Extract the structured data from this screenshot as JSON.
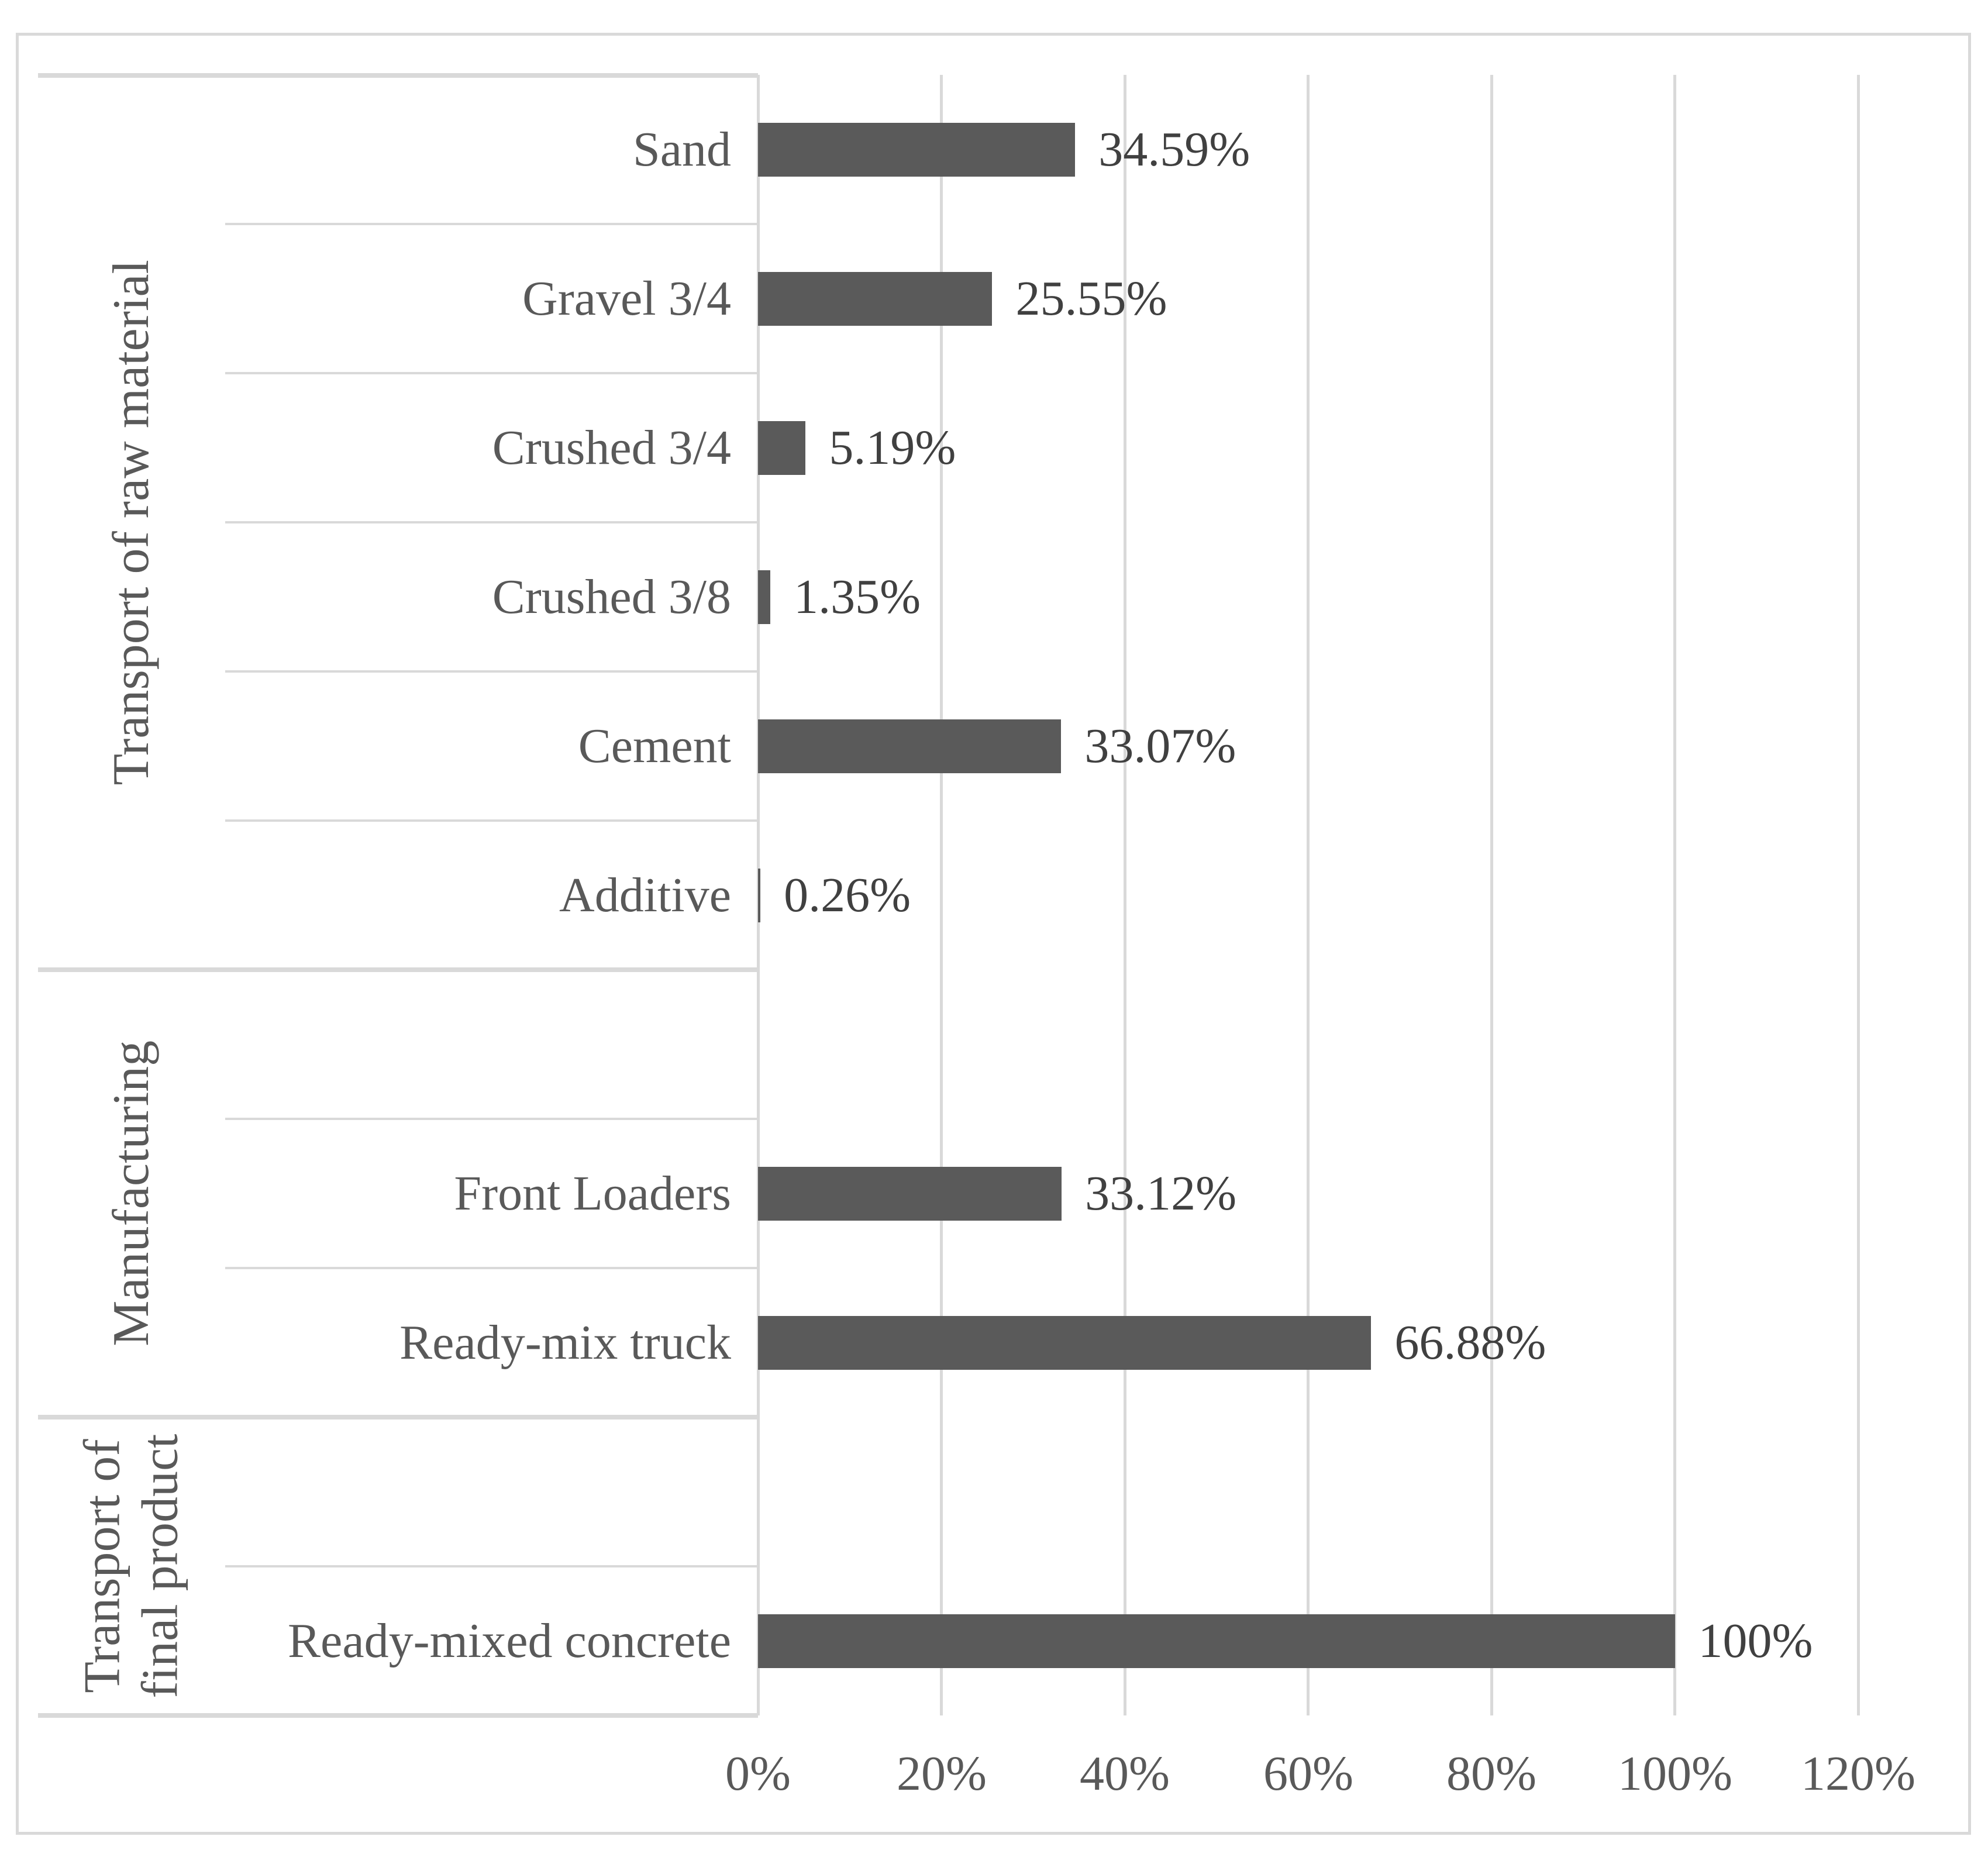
{
  "chart_data": {
    "type": "bar",
    "orientation": "horizontal",
    "title": "",
    "xlabel": "",
    "ylabel": "",
    "x_axis": {
      "min": 0,
      "max": 120,
      "tick_labels": [
        "0%",
        "20%",
        "40%",
        "60%",
        "80%",
        "100%",
        "120%"
      ],
      "tick_values": [
        0,
        20,
        40,
        60,
        80,
        100,
        120
      ],
      "gridlines": true
    },
    "legend": "none",
    "groups": [
      {
        "label": "Transport of raw material",
        "lines": [
          "Transport of raw material"
        ],
        "rows": [
          "Sand",
          "Gravel 3/4",
          "Crushed 3/4",
          "Crushed 3/8",
          "Cement",
          "Additive"
        ]
      },
      {
        "label": "Manufacturing",
        "lines": [
          "Manufacturing"
        ],
        "rows": [
          "",
          "Front Loaders",
          "Ready-mix truck"
        ]
      },
      {
        "label": "Transport of final product",
        "lines": [
          "Transport of",
          "final product"
        ],
        "rows": [
          "",
          "Ready-mixed concrete"
        ]
      }
    ],
    "rows": [
      {
        "label": "Sand",
        "value": 34.59,
        "value_label": "34.59%"
      },
      {
        "label": "Gravel 3/4",
        "value": 25.55,
        "value_label": "25.55%"
      },
      {
        "label": "Crushed 3/4",
        "value": 5.19,
        "value_label": "5.19%"
      },
      {
        "label": "Crushed 3/8",
        "value": 1.35,
        "value_label": "1.35%"
      },
      {
        "label": "Cement",
        "value": 33.07,
        "value_label": "33.07%"
      },
      {
        "label": "Additive",
        "value": 0.26,
        "value_label": "0.26%"
      },
      {
        "label": "",
        "value": null,
        "value_label": ""
      },
      {
        "label": "Front Loaders",
        "value": 33.12,
        "value_label": "33.12%"
      },
      {
        "label": "Ready-mix truck",
        "value": 66.88,
        "value_label": "66.88%"
      },
      {
        "label": "",
        "value": null,
        "value_label": ""
      },
      {
        "label": "Ready-mixed concrete",
        "value": 100,
        "value_label": "100%"
      }
    ],
    "colors": {
      "bar": "#5a5a5a",
      "gridline": "#d9d9d9",
      "figure_border": "#d9d9d9",
      "category_label": "#595959",
      "value_label": "#404040",
      "axis_label": "#595959",
      "group_label": "#595959",
      "background": "#ffffff"
    }
  }
}
